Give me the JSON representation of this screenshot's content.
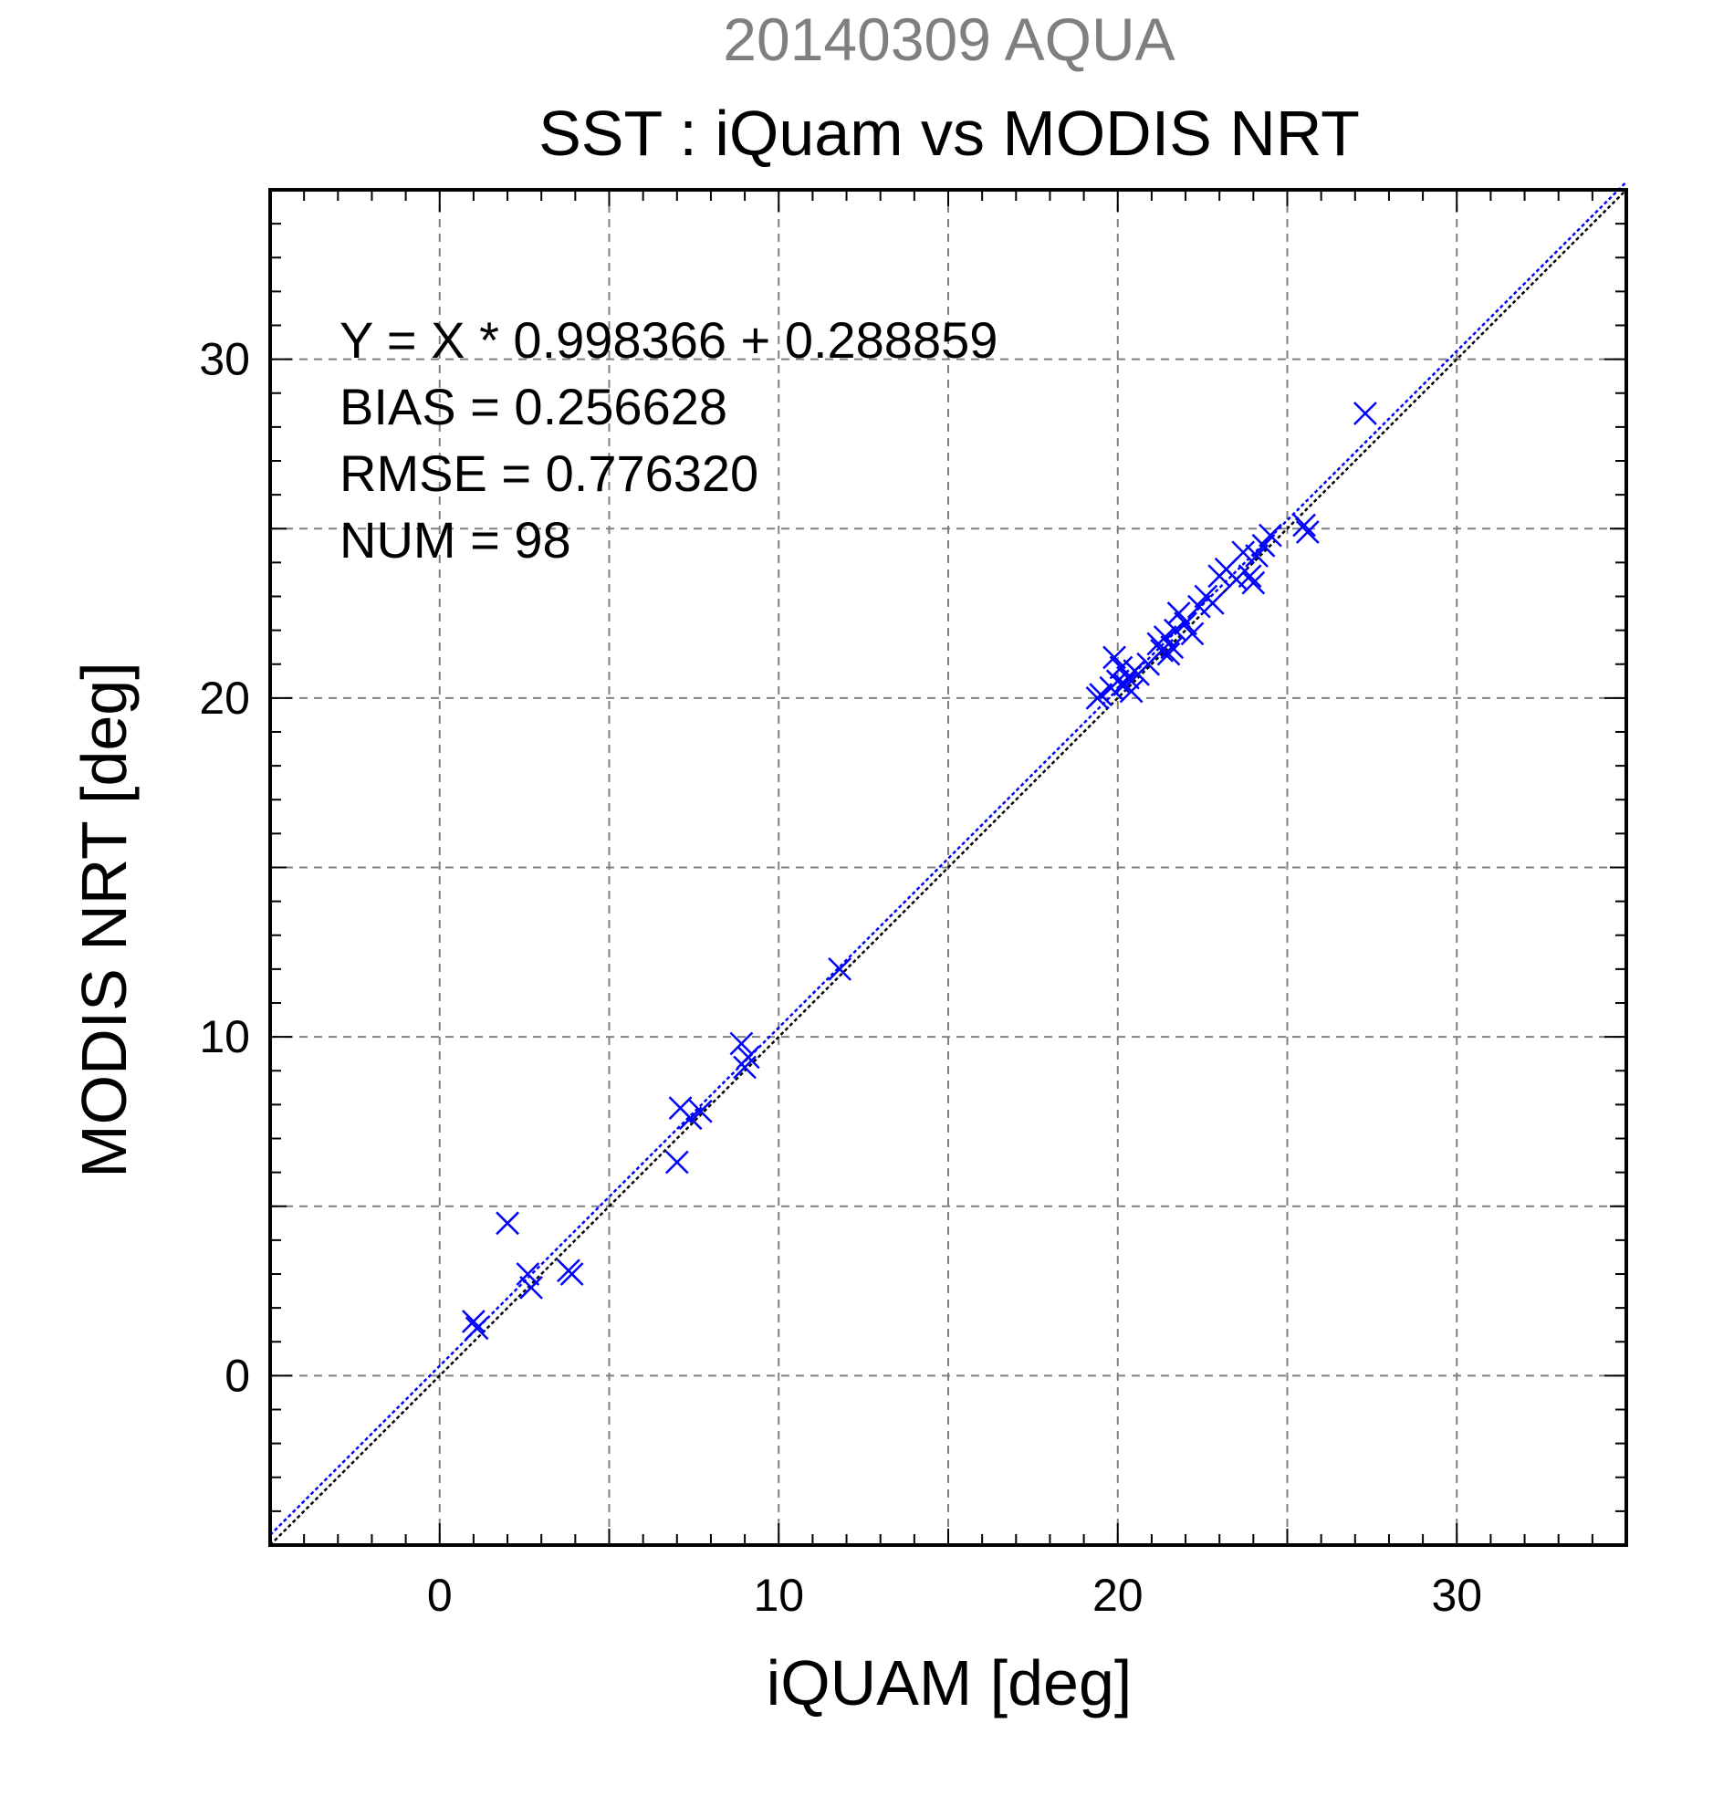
{
  "chart_data": {
    "type": "scatter",
    "title_top": "20140309 AQUA",
    "title": "SST : iQuam vs MODIS NRT",
    "xlabel": "iQUAM [deg]",
    "ylabel": "MODIS NRT [deg]",
    "xlim": [
      -5,
      35
    ],
    "ylim": [
      -5,
      35
    ],
    "major_ticks": [
      0,
      10,
      20,
      30
    ],
    "x_tick_labels": [
      "0",
      "10",
      "20",
      "30"
    ],
    "y_tick_labels": [
      "0",
      "10",
      "20",
      "30"
    ],
    "grid": true,
    "colors": {
      "points": "#0000ff",
      "fit_line": "#0000ff",
      "one_to_one": "#000000",
      "grid": "#808080",
      "top_title": "#7f7f7f"
    },
    "annotations": [
      "Y = X * 0.998366 + 0.288859",
      "BIAS = 0.256628",
      "RMSE = 0.776320",
      "NUM = 98"
    ],
    "fit": {
      "slope": 0.998366,
      "intercept": 0.288859
    },
    "points": {
      "x": [
        1.0,
        1.1,
        2.0,
        2.6,
        2.7,
        3.8,
        3.9,
        7.0,
        7.1,
        7.4,
        7.7,
        8.9,
        9.0,
        9.1,
        11.8,
        19.4,
        19.5,
        19.8,
        19.9,
        20.0,
        20.1,
        20.2,
        20.3,
        20.4,
        20.5,
        20.6,
        20.9,
        21.2,
        21.3,
        21.4,
        21.5,
        21.6,
        21.7,
        21.8,
        22.0,
        22.2,
        22.4,
        22.6,
        22.8,
        23.0,
        23.2,
        23.5,
        23.7,
        23.9,
        24.0,
        24.1,
        24.3,
        24.5,
        25.5,
        25.6,
        27.3
      ],
      "y": [
        1.6,
        1.4,
        4.5,
        3.0,
        2.6,
        3.1,
        3.0,
        6.3,
        7.9,
        7.6,
        7.8,
        9.8,
        9.1,
        9.4,
        12.0,
        20.0,
        20.1,
        20.3,
        21.2,
        20.5,
        20.9,
        20.4,
        20.6,
        20.2,
        20.8,
        20.7,
        21.0,
        21.6,
        21.4,
        21.8,
        21.3,
        21.5,
        22.0,
        22.5,
        22.2,
        21.9,
        22.7,
        23.0,
        22.8,
        23.6,
        23.8,
        23.5,
        24.3,
        23.6,
        23.4,
        24.2,
        24.5,
        24.8,
        25.1,
        24.9,
        28.4
      ]
    }
  }
}
